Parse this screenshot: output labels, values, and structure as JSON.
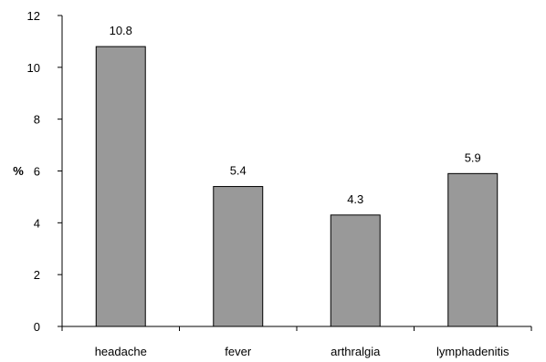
{
  "chart_data": {
    "type": "bar",
    "title": "",
    "xlabel": "",
    "ylabel": "%",
    "categories": [
      "headache",
      "fever",
      "arthralgia",
      "lymphadenitis"
    ],
    "values": [
      10.8,
      5.4,
      4.3,
      5.9
    ],
    "data_labels": [
      "10.8",
      "5.4",
      "4.3",
      "5.9"
    ],
    "ylim": [
      0,
      12
    ],
    "yticks": [
      0,
      2,
      4,
      6,
      8,
      10,
      12
    ],
    "grid": false,
    "legend": "none",
    "bar_color": "#999999",
    "bar_edge_color": "#000000"
  }
}
